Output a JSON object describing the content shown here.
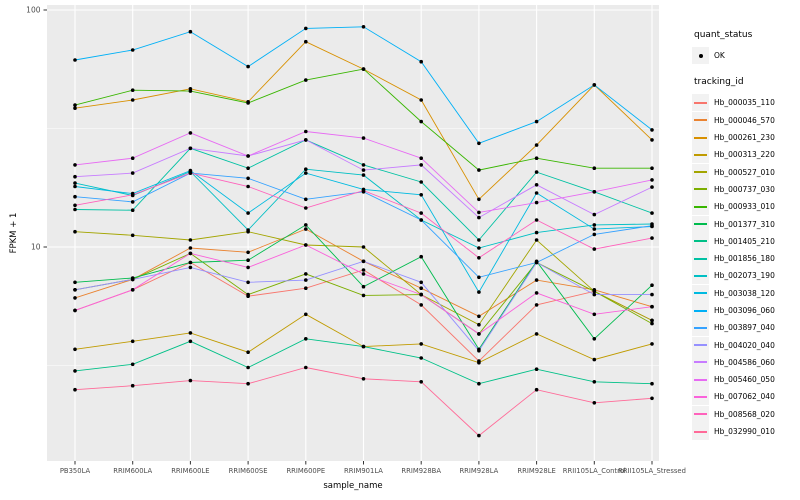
{
  "figure": {
    "y_axis": {
      "title": "FPKM + 1",
      "tick_labels": [
        "100",
        "10"
      ],
      "tick_values": [
        100,
        10
      ]
    },
    "x_axis": {
      "title": "sample_name"
    },
    "legend": {
      "quant_status": {
        "title": "quant_status",
        "items": [
          {
            "label": "OK"
          }
        ]
      },
      "tracking_id": {
        "title": "tracking_id"
      }
    }
  },
  "colors": {
    "background": "#FFFFFF",
    "panel_bg": "#EBEBEB",
    "gridline": "#FFFFFF",
    "key_bg": "#F2F2F2",
    "tick_label": "#4D4D4D",
    "axis_title": "#000000",
    "point": "#000000"
  },
  "chart_data": {
    "type": "line",
    "title": "",
    "xlabel": "sample_name",
    "ylabel": "FPKM + 1",
    "y_scale": "log10",
    "ylim": [
      1.25,
      105
    ],
    "y_major_gridlines": [
      10,
      100
    ],
    "y_minor_gridlines": [
      3.162,
      31.62
    ],
    "grid": true,
    "legend_position": "right",
    "point_shape": "filled-black-dot",
    "x": [
      "PB350LA",
      "RRIM600LA",
      "RRIM600LE",
      "RRIM600SE",
      "RRIM600PE",
      "RRIM901LA",
      "RRIM928BA",
      "RRIM928LA",
      "RRIM928LE",
      "RRII105LA_Control",
      "RRII105LA_Stressed"
    ],
    "series": [
      {
        "name": "Hb_000035_110",
        "color": "#F8766D",
        "values": [
          5.4,
          6.6,
          8.6,
          6.2,
          6.7,
          8.0,
          5.7,
          3.3,
          5.7,
          6.5,
          4.9
        ]
      },
      {
        "name": "Hb_000046_570",
        "color": "#EA8331",
        "values": [
          6.1,
          7.3,
          9.9,
          9.5,
          11.9,
          8.7,
          6.7,
          5.1,
          7.25,
          6.6,
          5.6
        ]
      },
      {
        "name": "Hb_000261_230",
        "color": "#D89000",
        "values": [
          38.5,
          41.7,
          46.5,
          41.0,
          73.5,
          56.3,
          41.7,
          15.9,
          26.9,
          48.3,
          28.3
        ]
      },
      {
        "name": "Hb_000313_220",
        "color": "#C09B00",
        "values": [
          3.7,
          4.0,
          4.34,
          3.6,
          5.2,
          3.8,
          3.9,
          3.25,
          4.3,
          3.35,
          3.9
        ]
      },
      {
        "name": "Hb_000527_010",
        "color": "#A3A500",
        "values": [
          11.6,
          11.2,
          10.7,
          11.6,
          10.2,
          10.0,
          6.3,
          4.7,
          10.7,
          6.5,
          4.9
        ]
      },
      {
        "name": "Hb_000737_030",
        "color": "#7CAE00",
        "values": [
          6.6,
          7.3,
          9.4,
          6.3,
          7.7,
          6.25,
          6.3,
          4.3,
          8.6,
          6.5,
          4.75
        ]
      },
      {
        "name": "Hb_000933_010",
        "color": "#39B600",
        "values": [
          39.7,
          45.9,
          45.5,
          40.5,
          50.6,
          56.3,
          33.8,
          21.1,
          23.7,
          21.5,
          21.5
        ]
      },
      {
        "name": "Hb_001377_310",
        "color": "#00BB4E",
        "values": [
          7.1,
          7.4,
          8.6,
          8.8,
          12.4,
          6.8,
          9.1,
          3.7,
          8.7,
          4.1,
          6.9
        ]
      },
      {
        "name": "Hb_001405_210",
        "color": "#00C087",
        "values": [
          3.0,
          3.2,
          4.0,
          3.1,
          4.1,
          3.8,
          3.4,
          2.65,
          3.05,
          2.7,
          2.65
        ]
      },
      {
        "name": "Hb_001856_180",
        "color": "#00C1A3",
        "values": [
          14.4,
          14.3,
          26.1,
          21.5,
          28.3,
          22.2,
          18.8,
          10.7,
          20.7,
          17.1,
          13.9
        ]
      },
      {
        "name": "Hb_002073_190",
        "color": "#00BFC4",
        "values": [
          18.6,
          16.5,
          20.8,
          11.8,
          21.3,
          20.1,
          13.0,
          9.9,
          11.5,
          12.4,
          12.5
        ]
      },
      {
        "name": "Hb_003038_120",
        "color": "#00BAE0",
        "values": [
          18.0,
          16.8,
          21.0,
          13.9,
          20.5,
          17.5,
          16.6,
          6.45,
          16.9,
          11.9,
          12.2
        ]
      },
      {
        "name": "Hb_003096_060",
        "color": "#00B0F6",
        "values": [
          61.5,
          67.8,
          81.0,
          57.7,
          83.6,
          84.9,
          60.5,
          27.4,
          33.8,
          48.3,
          31.2
        ]
      },
      {
        "name": "Hb_003897_040",
        "color": "#35A2FF",
        "values": [
          16.3,
          15.5,
          20.5,
          19.5,
          15.9,
          17.1,
          13.0,
          7.45,
          8.6,
          11.3,
          12.3
        ]
      },
      {
        "name": "Hb_004020_040",
        "color": "#9590FF",
        "values": [
          6.6,
          7.3,
          8.2,
          7.1,
          7.25,
          8.7,
          7.1,
          3.65,
          8.6,
          6.3,
          6.3
        ]
      },
      {
        "name": "Hb_004586_060",
        "color": "#C77CFF",
        "values": [
          19.8,
          20.5,
          26.1,
          24.2,
          28.3,
          21.1,
          22.2,
          13.3,
          18.3,
          13.7,
          17.9
        ]
      },
      {
        "name": "Hb_005460_050",
        "color": "#E76BF3",
        "values": [
          22.2,
          23.7,
          30.3,
          24.2,
          30.7,
          28.8,
          23.7,
          14.0,
          15.4,
          17.1,
          19.2
        ]
      },
      {
        "name": "Hb_007062_040",
        "color": "#FA62DB",
        "values": [
          5.4,
          6.6,
          9.4,
          8.2,
          10.2,
          7.7,
          6.3,
          4.3,
          6.4,
          5.2,
          5.6
        ]
      },
      {
        "name": "Hb_008568_020",
        "color": "#FF62BC",
        "values": [
          15.0,
          16.6,
          20.5,
          18.0,
          14.6,
          17.3,
          13.9,
          9.0,
          13.0,
          9.8,
          10.9
        ]
      },
      {
        "name": "Hb_032990_010",
        "color": "#FF6A98",
        "values": [
          2.5,
          2.6,
          2.73,
          2.65,
          3.1,
          2.78,
          2.7,
          1.6,
          2.5,
          2.2,
          2.3
        ]
      }
    ]
  }
}
